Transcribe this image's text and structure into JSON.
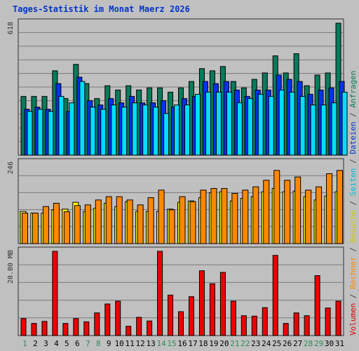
{
  "title": "Tages-Statistik im Monat Maerz 2026",
  "chart_data": [
    {
      "type": "bar",
      "name": "top-panel",
      "scale_label": "618",
      "ylim": [
        0,
        618
      ],
      "categories": [
        "1",
        "2",
        "3",
        "4",
        "5",
        "6",
        "7",
        "8",
        "9",
        "10",
        "11",
        "12",
        "13",
        "14",
        "15",
        "16",
        "17",
        "18",
        "19",
        "20",
        "21",
        "22",
        "23",
        "24",
        "25",
        "26",
        "27",
        "28",
        "29",
        "30",
        "31"
      ],
      "series": [
        {
          "name": "Anfragen",
          "color": "#0a7a5a",
          "values": [
            275,
            275,
            275,
            395,
            265,
            425,
            335,
            265,
            325,
            305,
            325,
            305,
            315,
            315,
            295,
            315,
            345,
            405,
            395,
            415,
            345,
            315,
            355,
            385,
            465,
            385,
            475,
            325,
            375,
            385,
            618
          ]
        },
        {
          "name": "Dateien",
          "color": "#0033ee",
          "values": [
            215,
            225,
            215,
            335,
            205,
            365,
            255,
            235,
            265,
            245,
            275,
            245,
            245,
            255,
            225,
            265,
            275,
            345,
            335,
            345,
            305,
            275,
            305,
            305,
            375,
            355,
            345,
            285,
            305,
            315,
            345
          ]
        },
        {
          "name": "Seiten",
          "color": "#00ddff",
          "values": [
            205,
            215,
            205,
            275,
            245,
            345,
            225,
            215,
            235,
            225,
            245,
            235,
            225,
            195,
            235,
            235,
            285,
            295,
            295,
            295,
            245,
            265,
            285,
            275,
            305,
            295,
            275,
            235,
            235,
            245,
            295
          ]
        }
      ]
    },
    {
      "type": "bar",
      "name": "middle-panel",
      "scale_label": "246",
      "ylim": [
        0,
        246
      ],
      "categories": [
        "1",
        "2",
        "3",
        "4",
        "5",
        "6",
        "7",
        "8",
        "9",
        "10",
        "11",
        "12",
        "13",
        "14",
        "15",
        "16",
        "17",
        "18",
        "19",
        "20",
        "21",
        "22",
        "23",
        "24",
        "25",
        "26",
        "27",
        "28",
        "29",
        "30",
        "31"
      ],
      "series": [
        {
          "name": "Besuche",
          "color": "#ffff00",
          "values": [
            98,
            93,
            93,
            103,
            105,
            126,
            98,
            108,
            123,
            113,
            128,
            98,
            98,
            98,
            105,
            126,
            130,
            140,
            155,
            158,
            130,
            138,
            143,
            158,
            168,
            158,
            160,
            143,
            133,
            145,
            158
          ]
        },
        {
          "name": "Rechner",
          "color": "#ff8800",
          "values": [
            93,
            93,
            113,
            123,
            97,
            116,
            118,
            133,
            143,
            143,
            133,
            118,
            140,
            163,
            103,
            143,
            128,
            163,
            168,
            168,
            153,
            163,
            173,
            193,
            223,
            193,
            203,
            163,
            173,
            213,
            223
          ]
        }
      ]
    },
    {
      "type": "bar",
      "name": "bottom-panel",
      "scale_label": "20.80 MB",
      "ylim": [
        0,
        20.8
      ],
      "categories": [
        "1",
        "2",
        "3",
        "4",
        "5",
        "6",
        "7",
        "8",
        "9",
        "10",
        "11",
        "12",
        "13",
        "14",
        "15",
        "16",
        "17",
        "18",
        "19",
        "20",
        "21",
        "22",
        "23",
        "24",
        "25",
        "26",
        "27",
        "28",
        "29",
        "30",
        "31"
      ],
      "series": [
        {
          "name": "Volumen",
          "color": "#ee0000",
          "values": [
            4.2,
            3.0,
            3.5,
            20.8,
            3.0,
            4.2,
            3.4,
            5.6,
            7.8,
            8.5,
            2.3,
            4.5,
            3.6,
            20.8,
            10.0,
            5.9,
            9.6,
            16.0,
            12.8,
            15.6,
            8.5,
            4.9,
            4.8,
            6.9,
            19.8,
            3.0,
            5.6,
            4.9,
            14.8,
            6.8,
            8.5
          ]
        }
      ]
    }
  ],
  "x_axis": {
    "labels": [
      "1",
      "2",
      "3",
      "4",
      "5",
      "6",
      "7",
      "8",
      "9",
      "10",
      "11",
      "12",
      "13",
      "14",
      "15",
      "16",
      "17",
      "18",
      "19",
      "20",
      "21",
      "22",
      "23",
      "24",
      "25",
      "26",
      "27",
      "28",
      "29",
      "30",
      "31"
    ],
    "weekend_days": [
      1,
      7,
      8,
      14,
      15,
      21,
      22,
      28,
      29
    ],
    "weekend_color": "#2e8b57",
    "weekday_color": "#000000"
  },
  "legend": {
    "items": [
      {
        "label": "Volumen",
        "color": "#dd0000"
      },
      {
        "label": "Rechner",
        "color": "#ff8800"
      },
      {
        "label": "Besuche",
        "color": "#cccc00"
      },
      {
        "label": "Seiten",
        "color": "#00bbdd"
      },
      {
        "label": "Dateien",
        "color": "#0033cc"
      },
      {
        "label": "Anfragen",
        "color": "#0a7a5a"
      }
    ],
    "separator": " / "
  }
}
